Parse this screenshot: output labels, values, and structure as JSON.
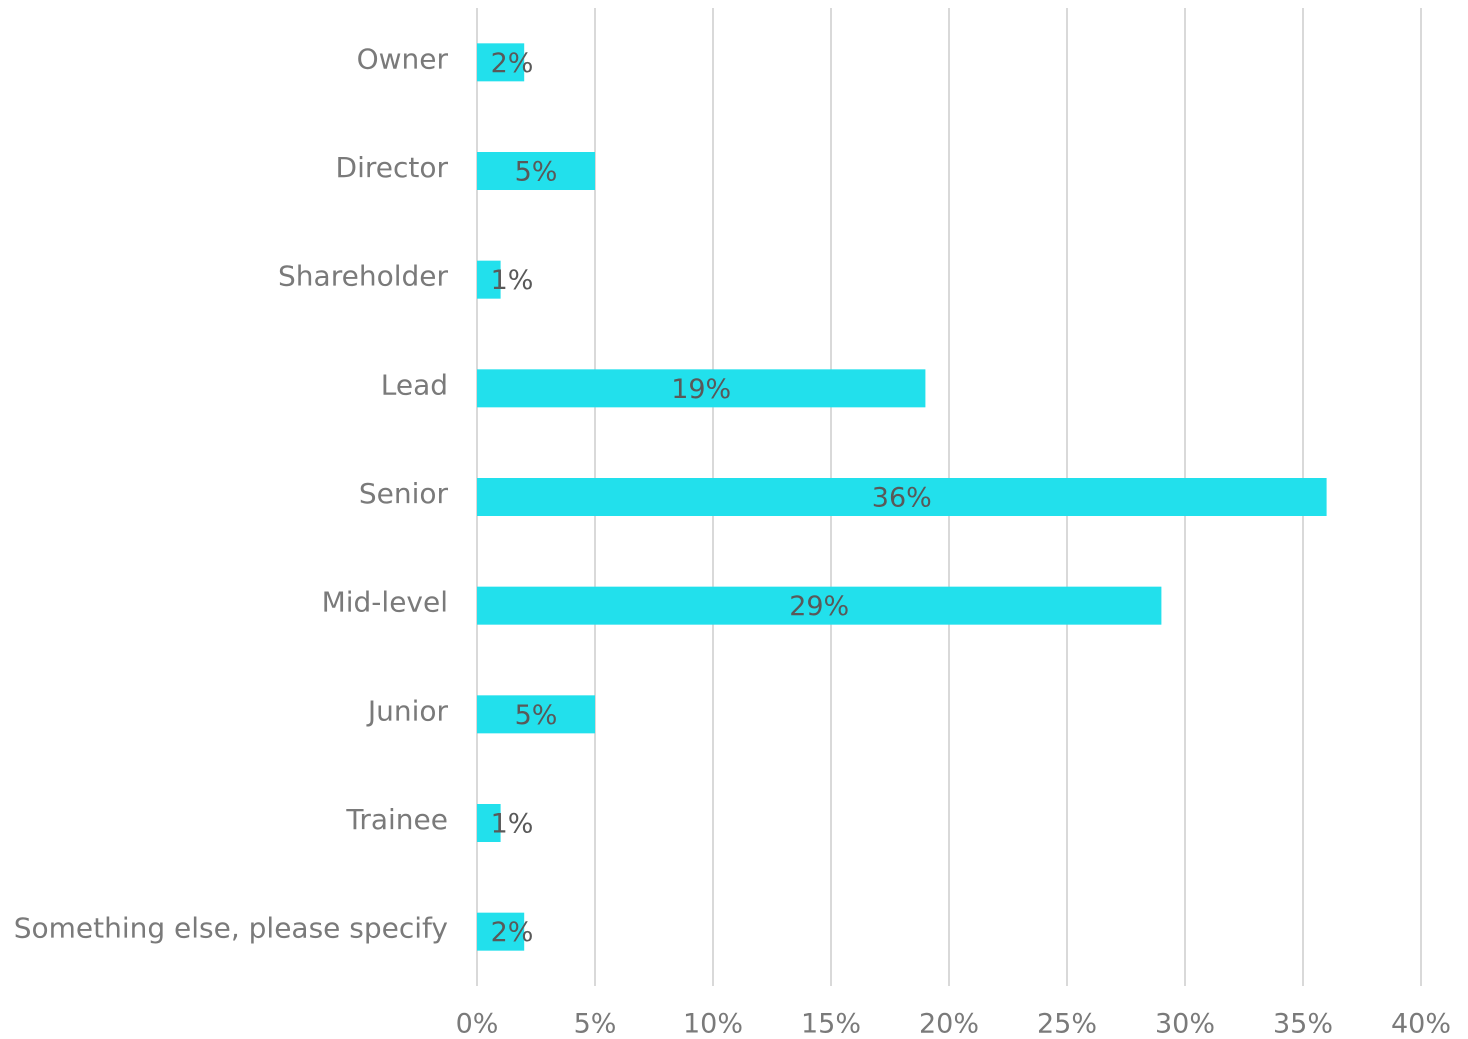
{
  "chart_data": {
    "type": "bar",
    "orientation": "horizontal",
    "categories": [
      "Owner",
      "Director",
      "Shareholder",
      "Lead",
      "Senior",
      "Mid-level",
      "Junior",
      "Trainee",
      "Something else, please specify"
    ],
    "values": [
      2,
      5,
      1,
      19,
      36,
      29,
      5,
      1,
      2
    ],
    "value_labels": [
      "2%",
      "5%",
      "1%",
      "19%",
      "36%",
      "29%",
      "5%",
      "1%",
      "2%"
    ],
    "color": "#22e0ec",
    "xlim": [
      0,
      40
    ],
    "xticks": [
      {
        "value": 0,
        "label": "0%"
      },
      {
        "value": 5,
        "label": "5%"
      },
      {
        "value": 10,
        "label": "10%"
      },
      {
        "value": 15,
        "label": "15%"
      },
      {
        "value": 20,
        "label": "20%"
      },
      {
        "value": 25,
        "label": "25%"
      },
      {
        "value": 30,
        "label": "30%"
      },
      {
        "value": 35,
        "label": "35%"
      },
      {
        "value": 40,
        "label": "40%"
      }
    ],
    "grid": true
  }
}
